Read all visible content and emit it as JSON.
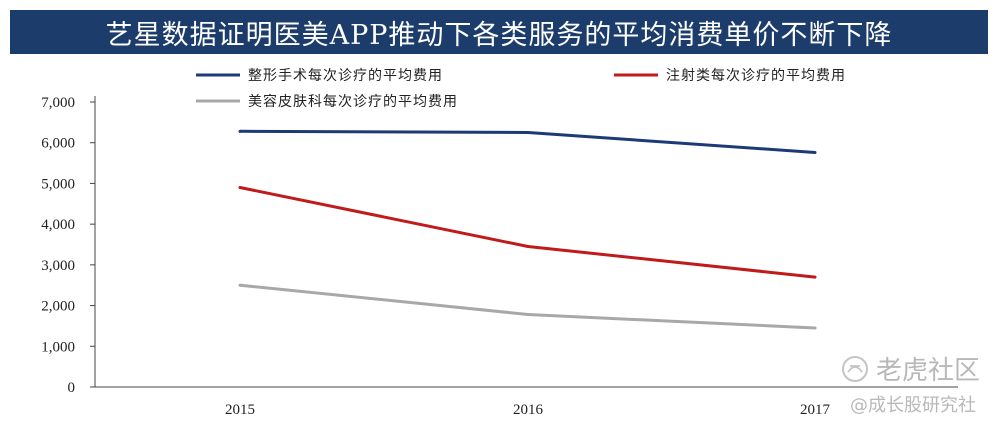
{
  "title": "艺星数据证明医美APP推动下各类服务的平均消费单价不断下降",
  "watermark": {
    "brand": "老虎社区",
    "handle": "@成长股研究社"
  },
  "chart_data": {
    "type": "line",
    "categories": [
      "2015",
      "2016",
      "2017"
    ],
    "ylim": [
      0,
      7000
    ],
    "yticks": [
      0,
      1000,
      2000,
      3000,
      4000,
      5000,
      6000,
      7000
    ],
    "ytick_labels": [
      "0",
      "1,000",
      "2,000",
      "3,000",
      "4,000",
      "5,000",
      "6,000",
      "7,000"
    ],
    "grid": false,
    "legend_position": "top",
    "series": [
      {
        "name": "整形手术每次诊疗的平均费用",
        "color": "#1c3a78",
        "values": [
          6280,
          6250,
          5760
        ]
      },
      {
        "name": "注射类每次诊疗的平均费用",
        "color": "#c01a1a",
        "values": [
          4900,
          3450,
          2700
        ]
      },
      {
        "name": "美容皮肤科每次诊疗的平均费用",
        "color": "#a8a8a8",
        "values": [
          2500,
          1780,
          1450
        ]
      }
    ]
  }
}
